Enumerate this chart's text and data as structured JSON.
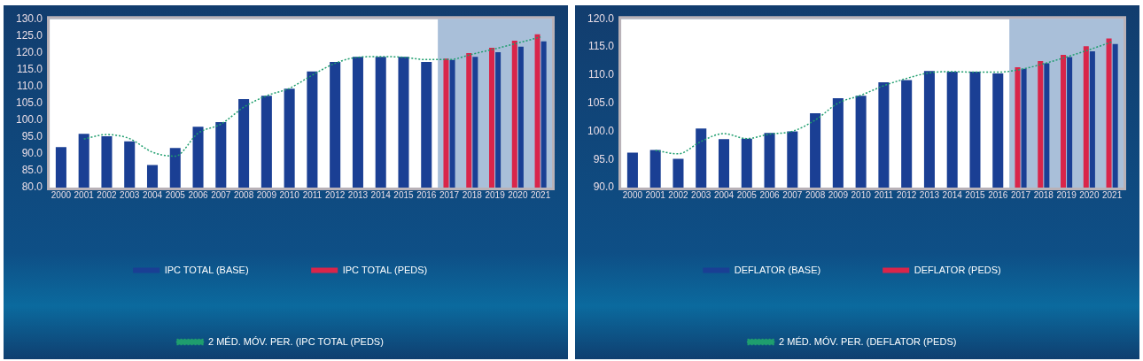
{
  "chart_data": [
    {
      "type": "bar",
      "categories": [
        "2000",
        "2001",
        "2002",
        "2003",
        "2004",
        "2005",
        "2006",
        "2007",
        "2008",
        "2009",
        "2010",
        "2011",
        "2012",
        "2013",
        "2014",
        "2015",
        "2016",
        "2017",
        "2018",
        "2019",
        "2020",
        "2021"
      ],
      "series": [
        {
          "name": "IPC TOTAL (BASE)",
          "color": "#1a3f94",
          "values": [
            92.0,
            95.9,
            95.2,
            93.7,
            86.7,
            91.7,
            98.0,
            99.4,
            106.2,
            107.2,
            109.3,
            114.4,
            117.2,
            118.7,
            118.7,
            118.7,
            117.2,
            117.8,
            118.7,
            120.1,
            121.7,
            123.3
          ]
        },
        {
          "name": "IPC TOTAL (PEDS)",
          "color": "#d9254a",
          "values": [
            null,
            null,
            null,
            null,
            null,
            null,
            null,
            null,
            null,
            null,
            null,
            null,
            null,
            null,
            null,
            null,
            null,
            118.2,
            119.8,
            121.4,
            123.5,
            125.4
          ]
        },
        {
          "name": "2 MÉD. MÓV. PER. (IPC TOTAL (PEDS)",
          "type": "line",
          "color": "#1f9e6e",
          "line_style": "dotted",
          "marker": "none",
          "values": [
            null,
            94.4,
            95.7,
            94.5,
            90.5,
            89.3,
            96.1,
            98.8,
            103.8,
            107.2,
            109.4,
            113.3,
            116.8,
            118.6,
            118.8,
            118.6,
            117.9,
            117.9,
            119.5,
            121.1,
            122.8,
            124.6
          ]
        }
      ],
      "ylim": [
        80,
        130
      ],
      "yticks": [
        {
          "value": 80,
          "label": "80.0"
        },
        {
          "value": 85,
          "label": "85.0"
        },
        {
          "value": 90,
          "label": "90.0"
        },
        {
          "value": 95,
          "label": "95.0"
        },
        {
          "value": 100,
          "label": "100.0"
        },
        {
          "value": 105,
          "label": "105.0"
        },
        {
          "value": 110,
          "label": "110.0"
        },
        {
          "value": 115,
          "label": "115.0"
        },
        {
          "value": 120,
          "label": "120.0"
        },
        {
          "value": 125,
          "label": "125.0"
        },
        {
          "value": 130,
          "label": "130.0"
        }
      ],
      "bands": [
        {
          "axis": "x",
          "from": "2017",
          "to": "2021",
          "color": "#a9bfd9"
        }
      ],
      "grid": false,
      "legend": "bottom"
    },
    {
      "type": "bar",
      "categories": [
        "2000",
        "2001",
        "2002",
        "2003",
        "2004",
        "2005",
        "2006",
        "2007",
        "2008",
        "2009",
        "2010",
        "2011",
        "2012",
        "2013",
        "2014",
        "2015",
        "2016",
        "2017",
        "2018",
        "2019",
        "2020",
        "2021"
      ],
      "series": [
        {
          "name": "DEFLATOR (BASE)",
          "color": "#1a3f94",
          "values": [
            96.2,
            96.7,
            95.1,
            100.5,
            98.6,
            98.7,
            99.7,
            100.0,
            103.2,
            105.9,
            106.3,
            108.7,
            109.1,
            110.7,
            110.6,
            110.6,
            110.3,
            111.1,
            112.1,
            113.2,
            114.2,
            115.5
          ]
        },
        {
          "name": "DEFLATOR (PEDS)",
          "color": "#d9254a",
          "values": [
            null,
            null,
            null,
            null,
            null,
            null,
            null,
            null,
            null,
            null,
            null,
            null,
            null,
            null,
            null,
            null,
            null,
            111.4,
            112.5,
            113.6,
            115.1,
            116.5
          ]
        },
        {
          "name": "2 MÉD. MÓV. PER. (DEFLATOR (PEDS)",
          "type": "line",
          "color": "#1f9e6e",
          "line_style": "dotted",
          "marker": "none",
          "values": [
            null,
            96.6,
            96.0,
            98.2,
            99.6,
            98.7,
            99.5,
            100.0,
            102.0,
            105.0,
            106.4,
            108.1,
            109.4,
            110.4,
            110.6,
            110.5,
            110.5,
            111.0,
            112.0,
            113.2,
            114.5,
            115.9
          ]
        }
      ],
      "ylim": [
        90,
        120
      ],
      "yticks": [
        {
          "value": 90,
          "label": "90.0"
        },
        {
          "value": 95,
          "label": "95.0"
        },
        {
          "value": 100,
          "label": "100.0"
        },
        {
          "value": 105,
          "label": "105.0"
        },
        {
          "value": 110,
          "label": "110.0"
        },
        {
          "value": 115,
          "label": "115.0"
        },
        {
          "value": 120,
          "label": "120.0"
        }
      ],
      "bands": [
        {
          "axis": "x",
          "from": "2017",
          "to": "2021",
          "color": "#a9bfd9"
        }
      ],
      "grid": false,
      "legend": "bottom"
    }
  ]
}
